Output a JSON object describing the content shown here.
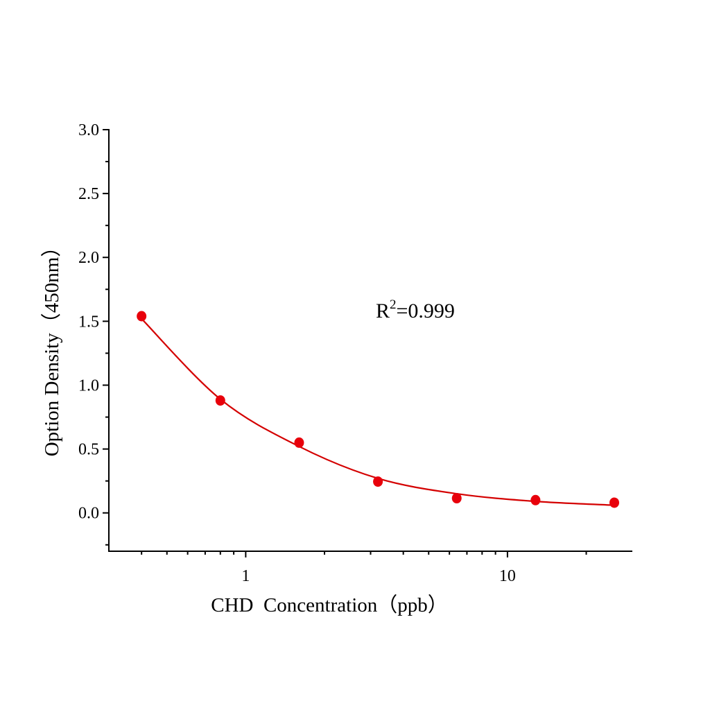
{
  "chart_data": {
    "type": "scatter",
    "xlabel": "CHD  Concentration（ppb）",
    "ylabel": "Option Density（450nm）",
    "x_scale": "log",
    "xlim": [
      0.3,
      30
    ],
    "ylim": [
      -0.3,
      3.0
    ],
    "x_ticks": [
      1,
      10
    ],
    "x_tick_labels": [
      "1",
      "10"
    ],
    "y_ticks": [
      0.0,
      0.5,
      1.0,
      1.5,
      2.0,
      2.5,
      3.0
    ],
    "y_tick_labels": [
      "0.0",
      "0.5",
      "1.0",
      "1.5",
      "2.0",
      "2.5",
      "3.0"
    ],
    "grid": false,
    "color": "#e8000b",
    "annotation": {
      "base": "R",
      "sup": "2",
      "rest": "=0.999"
    },
    "series": [
      {
        "kind": "points",
        "x": [
          0.4,
          0.8,
          1.6,
          3.2,
          6.4,
          12.8,
          25.6
        ],
        "y": [
          1.54,
          0.88,
          0.55,
          0.245,
          0.115,
          0.1,
          0.08
        ]
      },
      {
        "kind": "fit-curve",
        "x": [
          0.4,
          0.8,
          1.6,
          3.2,
          6.4,
          12.8,
          25.6
        ],
        "y": [
          1.52,
          0.89,
          0.52,
          0.27,
          0.15,
          0.09,
          0.06
        ]
      }
    ]
  }
}
